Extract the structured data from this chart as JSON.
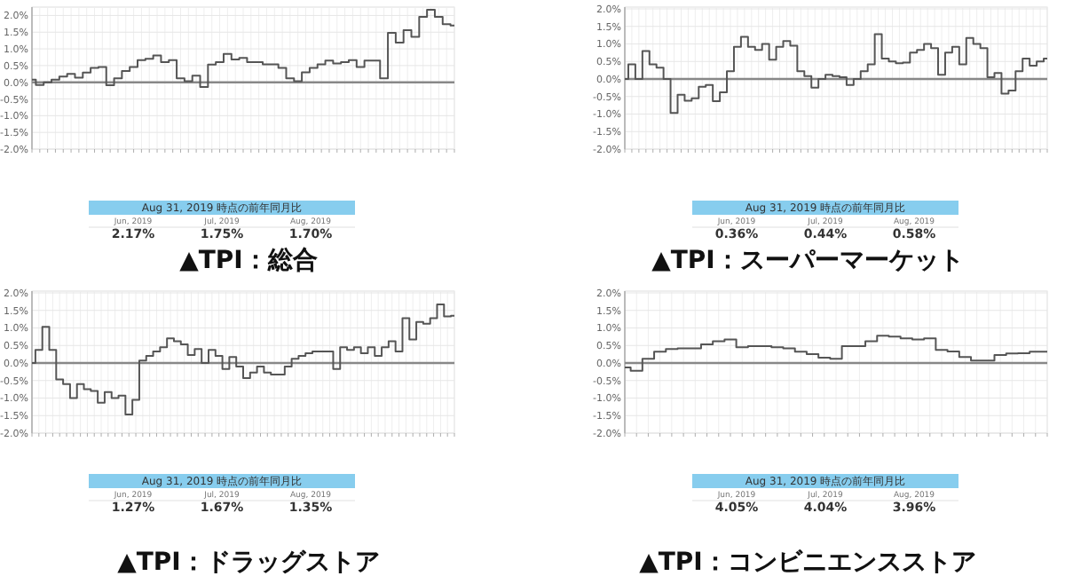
{
  "chart_data": [
    {
      "type": "step",
      "title": "▲TPI：総合",
      "color": "#555555",
      "grid": true,
      "tick_labels": "y",
      "ylim": [
        -2,
        2.25
      ],
      "yticks": [
        {
          "value": 2,
          "label": "2.0%"
        },
        {
          "value": 1.5,
          "label": "1.5%"
        },
        {
          "value": 1,
          "label": "1.0%"
        },
        {
          "value": 0.5,
          "label": "0.5%"
        },
        {
          "value": 0,
          "label": "0.0%"
        },
        {
          "value": -0.5,
          "label": "-0.5%"
        },
        {
          "value": -1,
          "label": "-1.0%"
        },
        {
          "value": -1.5,
          "label": "-1.5%"
        },
        {
          "value": -2,
          "label": "-2.0%"
        }
      ],
      "ref_lines": [
        {
          "axis": "y",
          "value": 0,
          "color": "#888888"
        }
      ],
      "annotations": [
        "Aug 31, 2019 時点の前年同月比",
        "Jun, 2019",
        "Jul, 2019",
        "Aug, 2019",
        "2.17%",
        "1.75%",
        "1.70%"
      ],
      "categories": [
        null,
        null,
        null,
        null,
        null,
        null,
        null,
        null,
        null,
        null,
        null,
        null,
        null,
        null,
        null,
        null,
        null,
        null,
        null,
        null,
        null,
        null,
        null,
        null,
        null,
        null,
        null,
        null,
        null,
        null,
        null,
        null,
        null,
        null,
        null,
        null,
        null,
        null,
        null,
        null,
        null,
        null,
        null,
        null,
        null,
        null,
        null,
        null,
        null,
        null,
        null,
        null,
        null,
        null,
        null
      ],
      "values": [
        0.08,
        -0.08,
        0,
        0.08,
        0.17,
        0.25,
        0.14,
        0.29,
        0.43,
        0.46,
        -0.09,
        0.12,
        0.34,
        0.46,
        0.66,
        0.7,
        0.8,
        0.6,
        0.66,
        0.12,
        0.03,
        0.2,
        -0.14,
        0.53,
        0.6,
        0.85,
        0.68,
        0.73,
        0.6,
        0.6,
        0.54,
        0.54,
        0.43,
        0.12,
        0.03,
        0.3,
        0.43,
        0.54,
        0.65,
        0.56,
        0.6,
        0.66,
        0.46,
        0.65,
        0.65,
        0.12,
        1.48,
        1.19,
        1.56,
        1.36,
        1.96,
        2.17,
        1.96,
        1.74,
        1.7
      ]
    },
    {
      "type": "step",
      "title": "▲TPI：スーパーマーケット",
      "color": "#555555",
      "grid": true,
      "tick_labels": "y",
      "ylim": [
        -2,
        2.05
      ],
      "yticks": [
        {
          "value": 2,
          "label": "2.0%"
        },
        {
          "value": 1.5,
          "label": "1.5%"
        },
        {
          "value": 1,
          "label": "1.0%"
        },
        {
          "value": 0.5,
          "label": "0.5%"
        },
        {
          "value": 0,
          "label": "0.0%"
        },
        {
          "value": -0.5,
          "label": "-0.5%"
        },
        {
          "value": -1,
          "label": "-1.0%"
        },
        {
          "value": -1.5,
          "label": "-1.5%"
        },
        {
          "value": -2,
          "label": "-2.0%"
        }
      ],
      "ref_lines": [
        {
          "axis": "y",
          "value": 0,
          "color": "#888888"
        }
      ],
      "annotations": [
        "Aug 31, 2019 時点の前年同月比",
        "Jun, 2019",
        "Jul, 2019",
        "Aug, 2019",
        "0.36%",
        "0.44%",
        "0.58%"
      ],
      "categories": [
        null,
        null,
        null,
        null,
        null,
        null,
        null,
        null,
        null,
        null,
        null,
        null,
        null,
        null,
        null,
        null,
        null,
        null,
        null,
        null,
        null,
        null,
        null,
        null,
        null,
        null,
        null,
        null,
        null,
        null,
        null,
        null,
        null,
        null,
        null,
        null,
        null,
        null,
        null,
        null,
        null,
        null,
        null,
        null,
        null,
        null,
        null,
        null,
        null,
        null,
        null,
        null,
        null,
        null,
        null,
        null,
        null,
        null,
        null,
        null,
        null
      ],
      "values": [
        0,
        0.42,
        0,
        0.8,
        0.42,
        0.32,
        0,
        -0.97,
        -0.45,
        -0.62,
        -0.55,
        -0.22,
        -0.17,
        -0.63,
        -0.38,
        0.22,
        0.92,
        1.2,
        0.92,
        0.83,
        1.0,
        0.55,
        0.92,
        1.08,
        0.95,
        0.22,
        0.08,
        -0.25,
        0,
        0.12,
        0.08,
        0.05,
        -0.17,
        0,
        0.22,
        0.42,
        1.28,
        0.58,
        0.5,
        0.45,
        0.47,
        0.75,
        0.83,
        1.0,
        0.88,
        0.12,
        0.75,
        0.92,
        0.42,
        1.17,
        1.0,
        0.88,
        0.05,
        0.17,
        -0.42,
        -0.33,
        0.22,
        0.58,
        0.38,
        0.5,
        0.58
      ]
    },
    {
      "type": "step",
      "title": "▲TPI：ドラッグストア",
      "color": "#555555",
      "grid": true,
      "tick_labels": "y",
      "ylim": [
        -2,
        2.05
      ],
      "yticks": [
        {
          "value": 2,
          "label": "2.0%"
        },
        {
          "value": 1.5,
          "label": "1.5%"
        },
        {
          "value": 1,
          "label": "1.0%"
        },
        {
          "value": 0.5,
          "label": "0.5%"
        },
        {
          "value": 0,
          "label": "0.0%"
        },
        {
          "value": -0.5,
          "label": "-0.5%"
        },
        {
          "value": -1,
          "label": "-1.0%"
        },
        {
          "value": -1.5,
          "label": "-1.5%"
        },
        {
          "value": -2,
          "label": "-2.0%"
        }
      ],
      "ref_lines": [
        {
          "axis": "y",
          "value": 0,
          "color": "#888888"
        }
      ],
      "annotations": [
        "Aug 31, 2019 時点の前年同月比",
        "Jun, 2019",
        "Jul, 2019",
        "Aug, 2019",
        "1.27%",
        "1.67%",
        "1.35%"
      ],
      "categories": [
        null,
        null,
        null,
        null,
        null,
        null,
        null,
        null,
        null,
        null,
        null,
        null,
        null,
        null,
        null,
        null,
        null,
        null,
        null,
        null,
        null,
        null,
        null,
        null,
        null,
        null,
        null,
        null,
        null,
        null,
        null,
        null,
        null,
        null,
        null,
        null,
        null,
        null,
        null,
        null,
        null,
        null,
        null,
        null,
        null,
        null,
        null,
        null,
        null,
        null,
        null,
        null,
        null,
        null,
        null,
        null,
        null,
        null,
        null,
        null,
        null,
        null
      ],
      "values": [
        0,
        0.37,
        1.03,
        0.37,
        -0.47,
        -0.6,
        -1.0,
        -0.6,
        -0.75,
        -0.8,
        -1.13,
        -0.83,
        -1.0,
        -0.93,
        -1.47,
        -1.05,
        0.07,
        0.2,
        0.33,
        0.45,
        0.7,
        0.62,
        0.53,
        0.23,
        0.4,
        0,
        0.37,
        0.2,
        -0.17,
        0.17,
        -0.1,
        -0.43,
        -0.27,
        -0.1,
        -0.27,
        -0.33,
        -0.33,
        -0.1,
        0.12,
        0.2,
        0.28,
        0.33,
        0.33,
        0.33,
        -0.17,
        0.45,
        0.37,
        0.45,
        0.28,
        0.45,
        0.2,
        0.45,
        0.62,
        0.33,
        1.28,
        0.67,
        1.17,
        1.12,
        1.28,
        1.67,
        1.33,
        1.35
      ]
    },
    {
      "type": "step",
      "title": "▲TPI：コンビニエンスストア",
      "color": "#555555",
      "grid": true,
      "tick_labels": "y",
      "ylim": [
        -2,
        2.05
      ],
      "yticks": [
        {
          "value": 2,
          "label": "2.0%"
        },
        {
          "value": 1.5,
          "label": "1.5%"
        },
        {
          "value": 1,
          "label": "1.0%"
        },
        {
          "value": 0.5,
          "label": "0.5%"
        },
        {
          "value": 0,
          "label": "0.0%"
        },
        {
          "value": -0.5,
          "label": "-0.5%"
        },
        {
          "value": -1,
          "label": "-1.0%"
        },
        {
          "value": -1.5,
          "label": "-1.5%"
        },
        {
          "value": -2,
          "label": "-2.0%"
        }
      ],
      "ref_lines": [
        {
          "axis": "y",
          "value": 0,
          "color": "#888888"
        }
      ],
      "annotations": [
        "Aug 31, 2019 時点の前年同月比",
        "Jun, 2019",
        "Jul, 2019",
        "Aug, 2019",
        "4.05%",
        "4.04%",
        "3.96%"
      ],
      "categories": [
        null,
        null,
        null,
        null,
        null,
        null,
        null,
        null,
        null,
        null,
        null,
        null,
        null,
        null,
        null,
        null,
        null,
        null,
        null,
        null,
        null,
        null,
        null,
        null,
        null,
        null,
        null,
        null,
        null,
        null,
        null,
        null,
        null,
        null,
        null,
        null,
        null
      ],
      "values": [
        -0.13,
        -0.22,
        0.12,
        0.32,
        0.4,
        0.42,
        0.42,
        0.53,
        0.62,
        0.67,
        0.45,
        0.48,
        0.48,
        0.45,
        0.42,
        0.32,
        0.25,
        0.15,
        0.12,
        0.48,
        0.48,
        0.62,
        0.78,
        0.75,
        0.7,
        0.67,
        0.7,
        0.37,
        0.33,
        0.17,
        0.07,
        0.07,
        0.23,
        0.27,
        0.28,
        0.32,
        0.32
      ]
    }
  ]
}
